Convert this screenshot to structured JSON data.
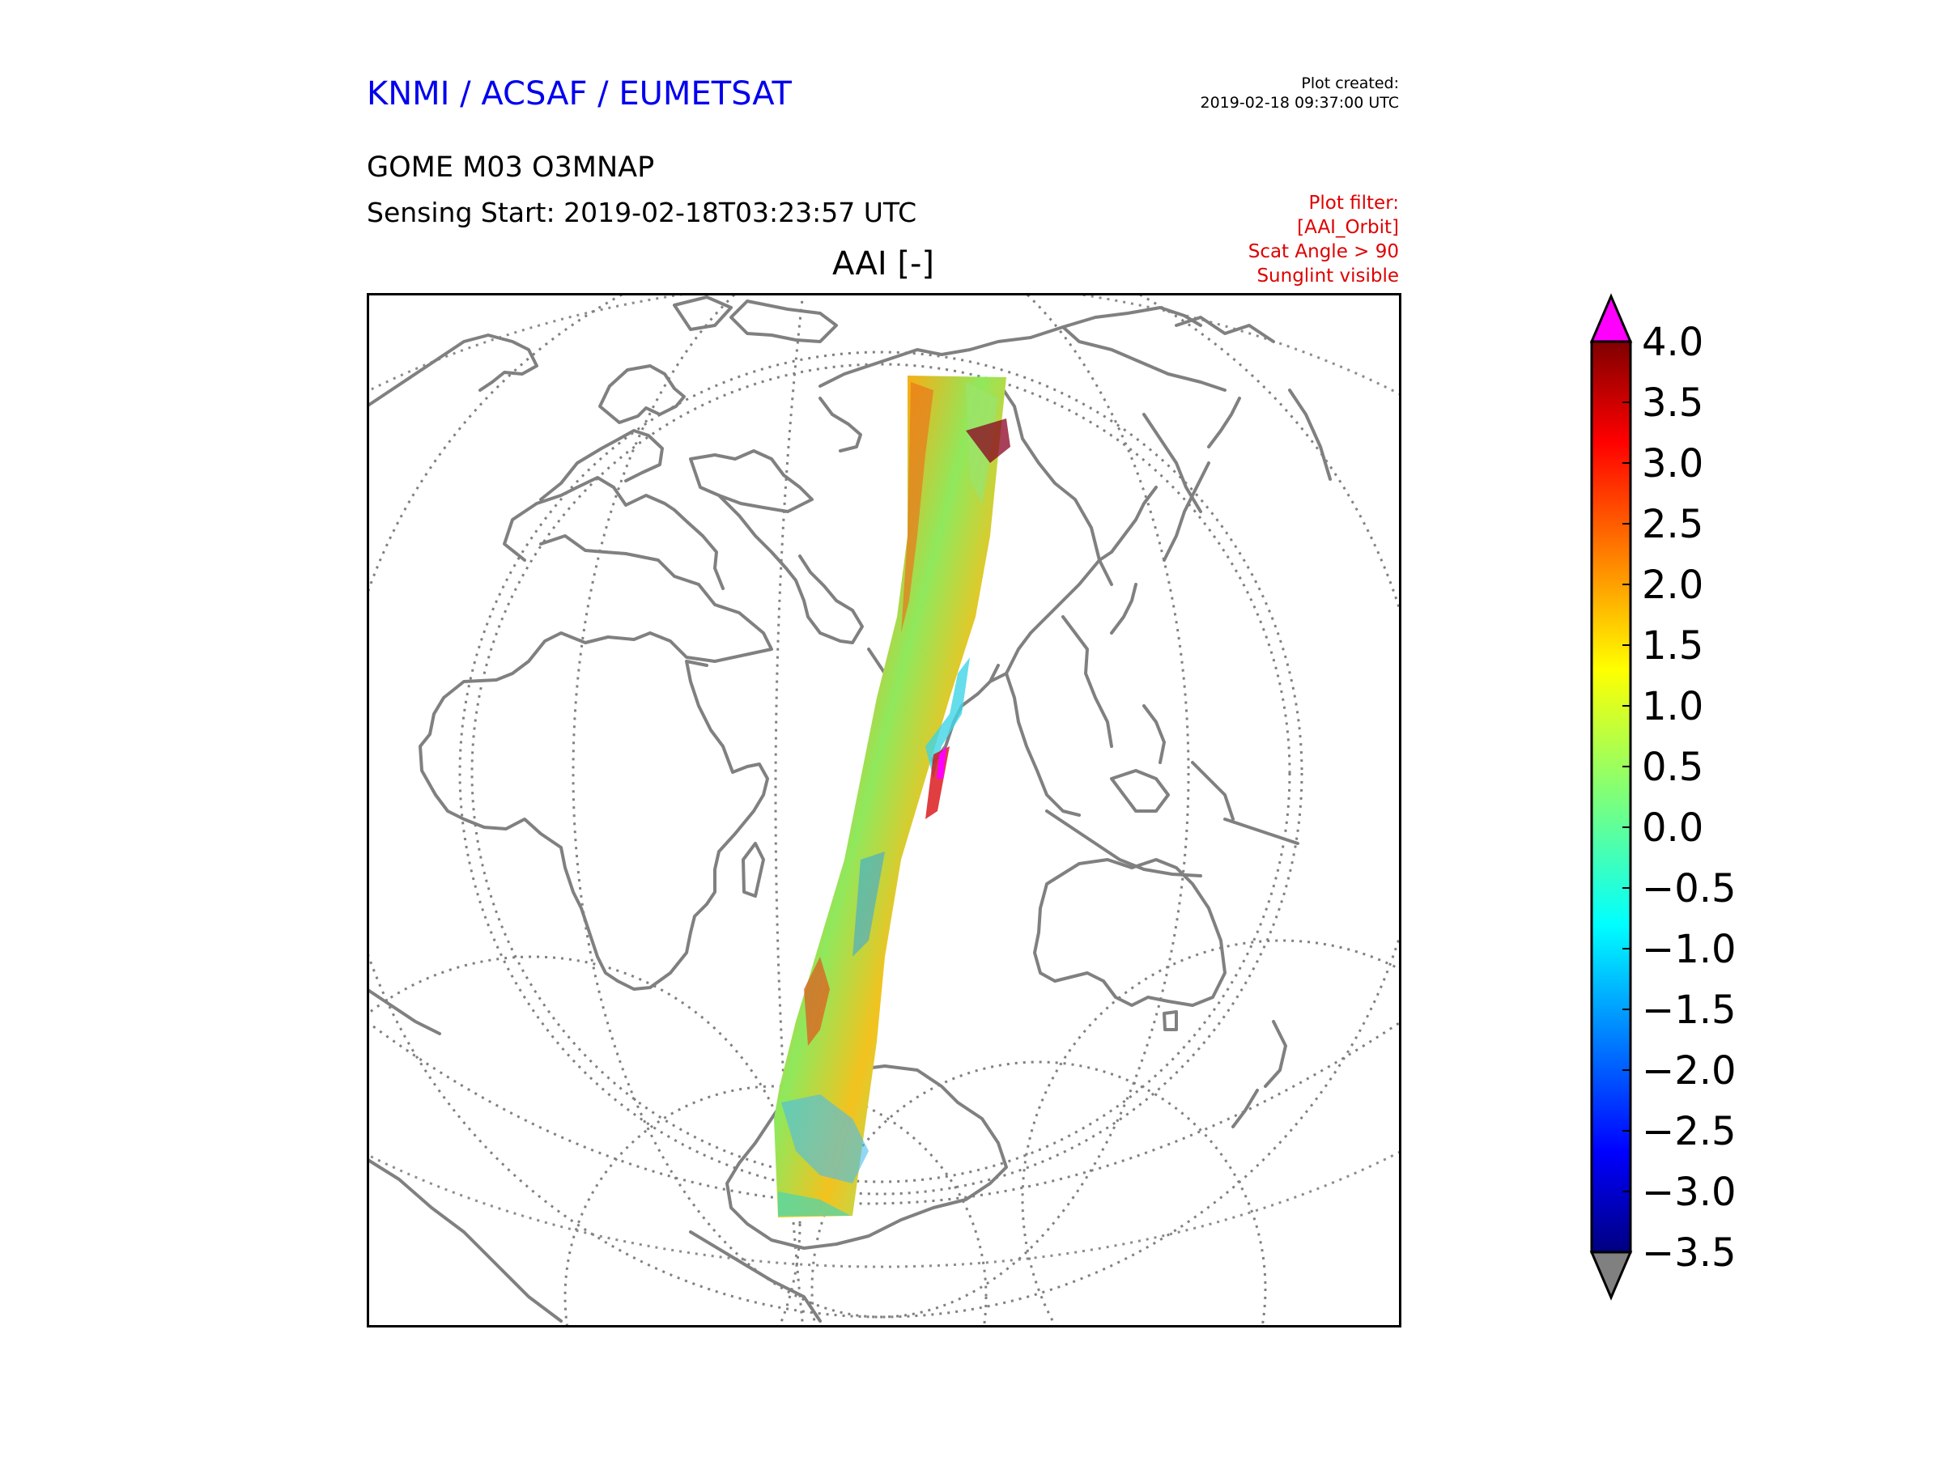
{
  "header": {
    "organizations": "KNMI / ACSAF / EUMETSAT",
    "plot_created_label": "Plot created:",
    "plot_created_time": "2019-02-18 09:37:00 UTC",
    "product": "GOME M03 O3MNAP",
    "sensing_start": "Sensing Start: 2019-02-18T03:23:57 UTC"
  },
  "filters": {
    "label": "Plot filter:",
    "items": [
      "[AAI_Orbit]",
      "Scat Angle > 90",
      "Sunglint visible"
    ],
    "color": "#e00000"
  },
  "map": {
    "title": "AAI [-]",
    "projection": "azimuthal (globe view)",
    "coastline_color": "#808080",
    "graticule_style": "dotted grey"
  },
  "colorbar": {
    "min": -3.5,
    "max": 4.0,
    "tick_labels": [
      "4.0",
      "3.5",
      "3.0",
      "2.5",
      "2.0",
      "1.5",
      "1.0",
      "0.5",
      "0.0",
      "−0.5",
      "−1.0",
      "−1.5",
      "−2.0",
      "−2.5",
      "−3.0",
      "−3.5"
    ],
    "over_color": "#ff00ff",
    "under_color": "#808080",
    "colormap": "jet"
  }
}
